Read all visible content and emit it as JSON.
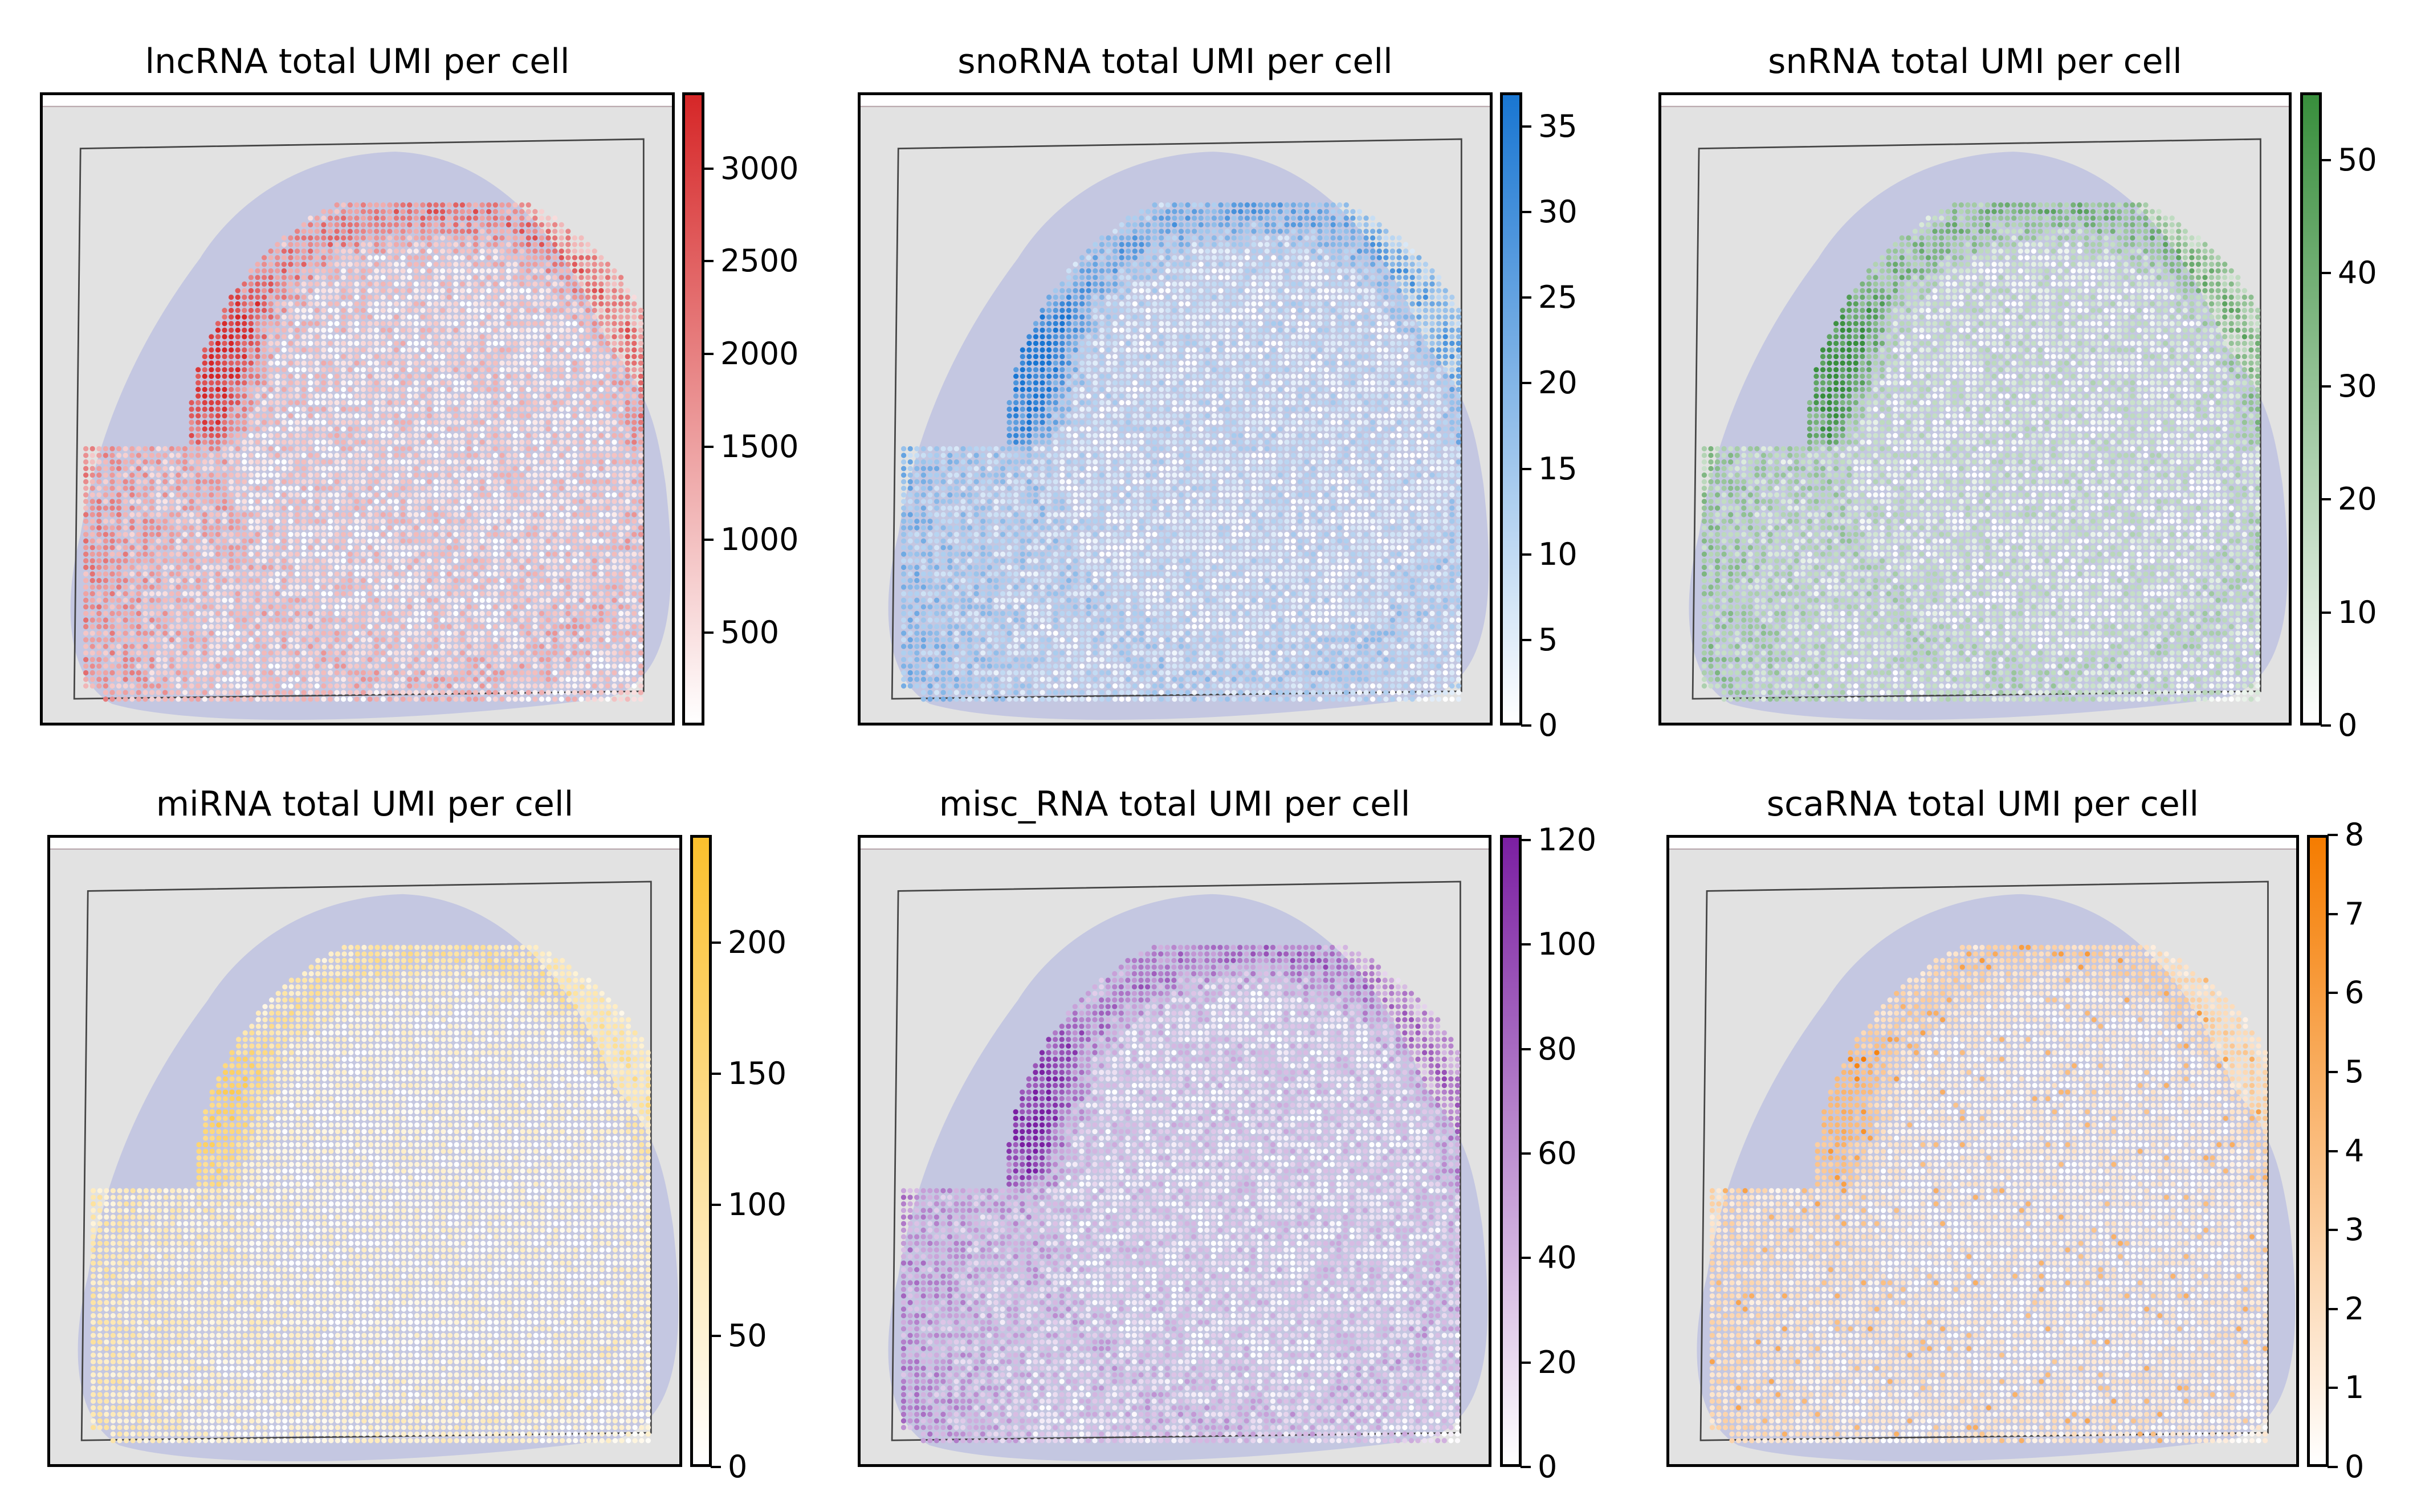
{
  "chart_data": [
    {
      "type": "scatter",
      "subtype": "spatial-heatmap",
      "title": "lncRNA total UMI per cell",
      "colormap": {
        "low": "#ffffff",
        "high": "#d62728"
      },
      "colorbar_range": [
        0,
        3410
      ],
      "colorbar_ticks": [
        500,
        1000,
        1500,
        2000,
        2500,
        3000
      ],
      "colorbar_tick_labels": [
        "500",
        "1000",
        "1500",
        "2000",
        "2500",
        "3000"
      ]
    },
    {
      "type": "scatter",
      "subtype": "spatial-heatmap",
      "title": "snoRNA total UMI per cell",
      "colormap": {
        "low": "#ffffff",
        "high": "#1976d2"
      },
      "colorbar_range": [
        0,
        37
      ],
      "colorbar_ticks": [
        0,
        5,
        10,
        15,
        20,
        25,
        30,
        35
      ],
      "colorbar_tick_labels": [
        "0",
        "5",
        "10",
        "15",
        "20",
        "25",
        "30",
        "35"
      ]
    },
    {
      "type": "scatter",
      "subtype": "spatial-heatmap",
      "title": "snRNA total UMI per cell",
      "colormap": {
        "low": "#ffffff",
        "high": "#388e3c"
      },
      "colorbar_range": [
        0,
        56
      ],
      "colorbar_ticks": [
        0,
        10,
        20,
        30,
        40,
        50
      ],
      "colorbar_tick_labels": [
        "0",
        "10",
        "20",
        "30",
        "40",
        "50"
      ]
    },
    {
      "type": "scatter",
      "subtype": "spatial-heatmap",
      "title": "miRNA total UMI per cell",
      "colormap": {
        "low": "#ffffff",
        "high": "#fbc02d"
      },
      "colorbar_range": [
        0,
        241
      ],
      "colorbar_ticks": [
        0,
        50,
        100,
        150,
        200
      ],
      "colorbar_tick_labels": [
        "0",
        "50",
        "100",
        "150",
        "200"
      ]
    },
    {
      "type": "scatter",
      "subtype": "spatial-heatmap",
      "title": "misc_RNA total UMI per cell",
      "colormap": {
        "low": "#ffffff",
        "high": "#7b1fa2"
      },
      "colorbar_range": [
        0,
        121
      ],
      "colorbar_ticks": [
        0,
        20,
        40,
        60,
        80,
        100,
        120
      ],
      "colorbar_tick_labels": [
        "0",
        "20",
        "40",
        "60",
        "80",
        "100",
        "120"
      ]
    },
    {
      "type": "scatter",
      "subtype": "spatial-heatmap",
      "title": "scaRNA total UMI per cell",
      "colormap": {
        "low": "#ffffff",
        "high": "#f57c00"
      },
      "colorbar_range": [
        0,
        8
      ],
      "colorbar_ticks": [
        0,
        1,
        2,
        3,
        4,
        5,
        6,
        7,
        8
      ],
      "colorbar_tick_labels": [
        "0",
        "1",
        "2",
        "3",
        "4",
        "5",
        "6",
        "7",
        "8"
      ]
    }
  ]
}
